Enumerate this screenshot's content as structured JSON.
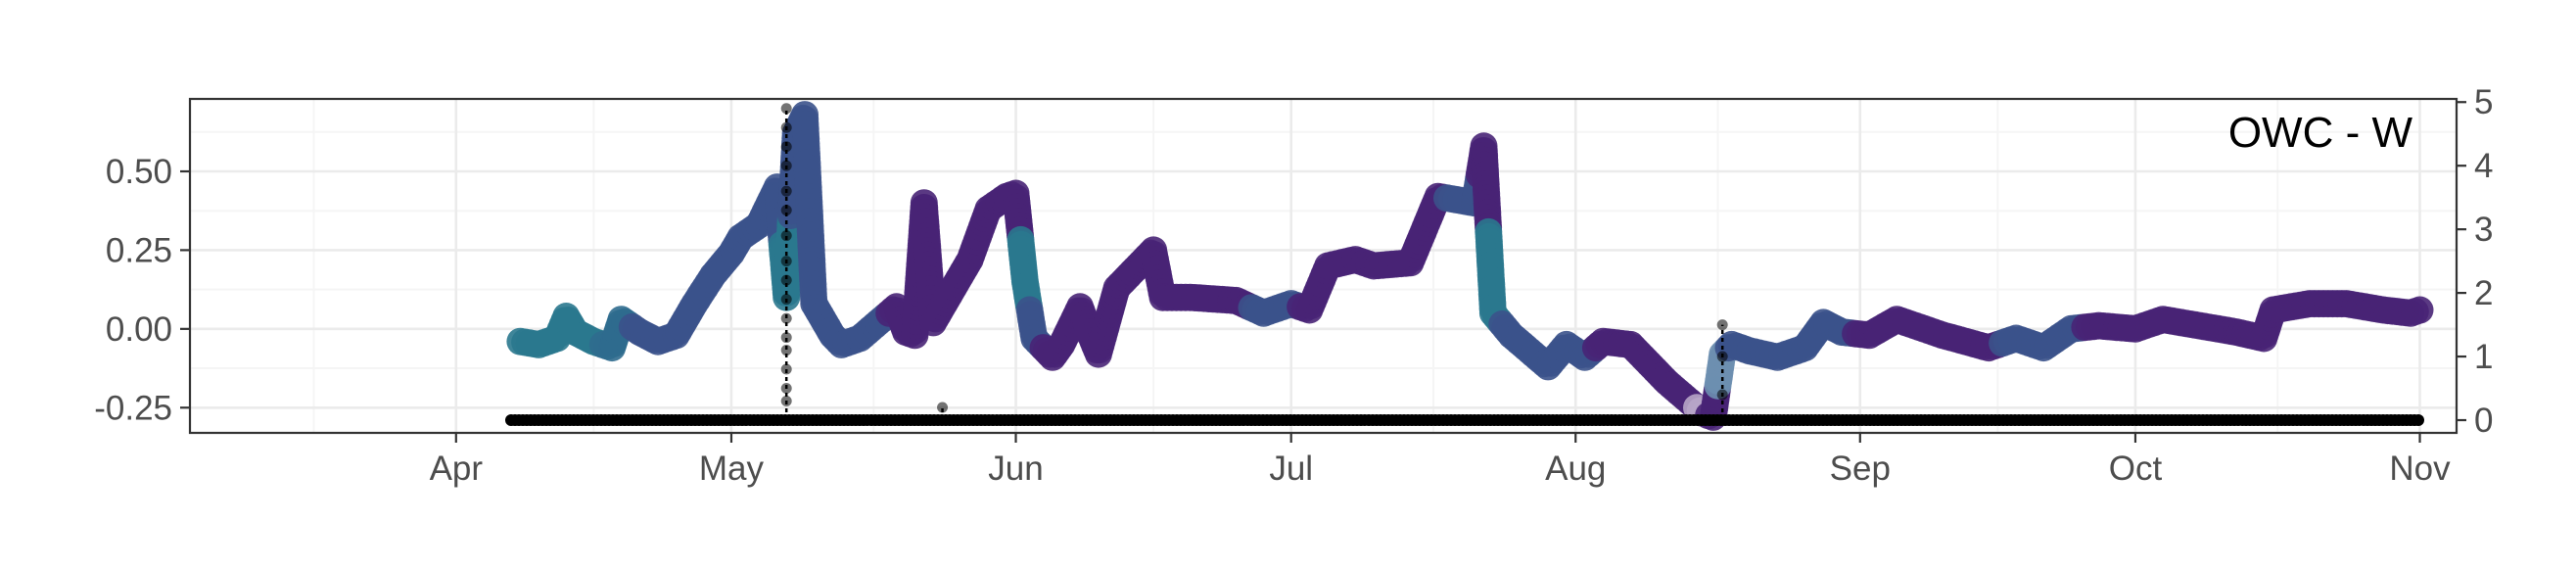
{
  "chart_data": {
    "type": "scatter",
    "title": "",
    "annotation": "OWC - W",
    "xlabel": "",
    "ylabel": "",
    "y2label": "",
    "x_ticks": [
      "Apr",
      "May",
      "Jun",
      "Jul",
      "Aug",
      "Sep",
      "Oct",
      "Nov"
    ],
    "x_tick_dates": [
      "2023-04-01",
      "2023-05-01",
      "2023-06-01",
      "2023-07-01",
      "2023-08-01",
      "2023-09-01",
      "2023-10-01",
      "2023-11-01"
    ],
    "xlim": [
      "2023-03-03",
      "2023-11-05"
    ],
    "ylim": [
      -0.33,
      0.73
    ],
    "y_ticks": [
      -0.25,
      0.0,
      0.25,
      0.5
    ],
    "y_tick_labels": [
      "-0.25",
      "0.00",
      "0.25",
      "0.50"
    ],
    "y2lim": [
      -0.2,
      5.05
    ],
    "y2_ticks": [
      0,
      1,
      2,
      3,
      4,
      5
    ],
    "y2_tick_labels": [
      "0",
      "1",
      "2",
      "3",
      "4",
      "5"
    ],
    "grid": true,
    "legend": "none",
    "colors": {
      "teal": "#2a788e",
      "blue": "#3b528b",
      "purple": "#482475",
      "dark_purple": "#440154",
      "mauve": "#b7a5c8",
      "precip": "#000000",
      "panel_border": "#333333",
      "grid_major": "#ebebeb",
      "grid_minor": "#f5f5f5"
    },
    "series": [
      {
        "kind": "water_level",
        "points": [
          [
            "2023-04-08",
            -0.04,
            "#2a788e"
          ],
          [
            "2023-04-10",
            -0.05,
            "#2a788e"
          ],
          [
            "2023-04-12",
            -0.03,
            "#2a788e"
          ],
          [
            "2023-04-13",
            0.04,
            "#2a788e"
          ],
          [
            "2023-04-14",
            -0.01,
            "#2a788e"
          ],
          [
            "2023-04-16",
            -0.04,
            "#2a788e"
          ],
          [
            "2023-04-18",
            -0.06,
            "#2f6b8e"
          ],
          [
            "2023-04-19",
            0.03,
            "#2f6b8e"
          ],
          [
            "2023-04-21",
            -0.01,
            "#3b528b"
          ],
          [
            "2023-04-23",
            -0.04,
            "#3b528b"
          ],
          [
            "2023-04-25",
            -0.02,
            "#3b528b"
          ],
          [
            "2023-04-27",
            0.08,
            "#3b528b"
          ],
          [
            "2023-04-29",
            0.17,
            "#3b528b"
          ],
          [
            "2023-05-01",
            0.24,
            "#3b528b"
          ],
          [
            "2023-05-02",
            0.29,
            "#3b528b"
          ],
          [
            "2023-05-04",
            0.33,
            "#3b528b"
          ],
          [
            "2023-05-06",
            0.45,
            "#3b528b"
          ],
          [
            "2023-05-07",
            0.1,
            "#2a788e"
          ],
          [
            "2023-05-08",
            0.62,
            "#3b528b"
          ],
          [
            "2023-05-09",
            0.68,
            "#3b528b"
          ],
          [
            "2023-05-10",
            0.08,
            "#3b528b"
          ],
          [
            "2023-05-12",
            -0.02,
            "#3b528b"
          ],
          [
            "2023-05-13",
            -0.05,
            "#3b528b"
          ],
          [
            "2023-05-15",
            -0.03,
            "#3b528b"
          ],
          [
            "2023-05-17",
            0.02,
            "#3b528b"
          ],
          [
            "2023-05-19",
            0.07,
            "#482475"
          ],
          [
            "2023-05-20",
            -0.01,
            "#482475"
          ],
          [
            "2023-05-21",
            -0.02,
            "#482475"
          ],
          [
            "2023-05-22",
            0.4,
            "#482475"
          ],
          [
            "2023-05-23",
            0.02,
            "#482475"
          ],
          [
            "2023-05-25",
            0.12,
            "#482475"
          ],
          [
            "2023-05-27",
            0.22,
            "#482475"
          ],
          [
            "2023-05-29",
            0.38,
            "#482475"
          ],
          [
            "2023-05-31",
            0.42,
            "#482475"
          ],
          [
            "2023-06-01",
            0.43,
            "#482475"
          ],
          [
            "2023-06-02",
            0.15,
            "#2a788e"
          ],
          [
            "2023-06-03",
            -0.03,
            "#3b528b"
          ],
          [
            "2023-06-05",
            -0.09,
            "#482475"
          ],
          [
            "2023-06-06",
            -0.05,
            "#482475"
          ],
          [
            "2023-06-08",
            0.07,
            "#482475"
          ],
          [
            "2023-06-09",
            -0.01,
            "#482475"
          ],
          [
            "2023-06-10",
            -0.08,
            "#482475"
          ],
          [
            "2023-06-12",
            0.13,
            "#482475"
          ],
          [
            "2023-06-14",
            0.19,
            "#482475"
          ],
          [
            "2023-06-16",
            0.25,
            "#482475"
          ],
          [
            "2023-06-17",
            0.1,
            "#482475"
          ],
          [
            "2023-06-20",
            0.1,
            "#482475"
          ],
          [
            "2023-06-25",
            0.09,
            "#482475"
          ],
          [
            "2023-06-28",
            0.05,
            "#3b528b"
          ],
          [
            "2023-07-01",
            0.08,
            "#3b528b"
          ],
          [
            "2023-07-03",
            0.06,
            "#482475"
          ],
          [
            "2023-07-05",
            0.2,
            "#482475"
          ],
          [
            "2023-07-08",
            0.22,
            "#482475"
          ],
          [
            "2023-07-10",
            0.2,
            "#482475"
          ],
          [
            "2023-07-14",
            0.21,
            "#482475"
          ],
          [
            "2023-07-17",
            0.42,
            "#482475"
          ],
          [
            "2023-07-19",
            0.41,
            "#3b528b"
          ],
          [
            "2023-07-21",
            0.4,
            "#3b528b"
          ],
          [
            "2023-07-22",
            0.58,
            "#482475"
          ],
          [
            "2023-07-23",
            0.05,
            "#2a788e"
          ],
          [
            "2023-07-25",
            -0.02,
            "#3b528b"
          ],
          [
            "2023-07-27",
            -0.07,
            "#3b528b"
          ],
          [
            "2023-07-29",
            -0.12,
            "#3b528b"
          ],
          [
            "2023-07-31",
            -0.05,
            "#3b528b"
          ],
          [
            "2023-08-02",
            -0.09,
            "#3b528b"
          ],
          [
            "2023-08-04",
            -0.04,
            "#482475"
          ],
          [
            "2023-08-07",
            -0.05,
            "#482475"
          ],
          [
            "2023-08-09",
            -0.11,
            "#482475"
          ],
          [
            "2023-08-11",
            -0.17,
            "#482475"
          ],
          [
            "2023-08-13",
            -0.22,
            "#482475"
          ],
          [
            "2023-08-15",
            -0.27,
            "#b7a5c8"
          ],
          [
            "2023-08-16",
            -0.28,
            "#482475"
          ],
          [
            "2023-08-17",
            -0.08,
            "#6d8fb0"
          ],
          [
            "2023-08-18",
            -0.05,
            "#3b528b"
          ],
          [
            "2023-08-20",
            -0.07,
            "#3b528b"
          ],
          [
            "2023-08-23",
            -0.09,
            "#3b528b"
          ],
          [
            "2023-08-26",
            -0.06,
            "#3b528b"
          ],
          [
            "2023-08-28",
            0.02,
            "#3b528b"
          ],
          [
            "2023-08-30",
            -0.01,
            "#3b528b"
          ],
          [
            "2023-09-02",
            -0.02,
            "#482475"
          ],
          [
            "2023-09-05",
            0.03,
            "#482475"
          ],
          [
            "2023-09-10",
            -0.02,
            "#482475"
          ],
          [
            "2023-09-15",
            -0.06,
            "#482475"
          ],
          [
            "2023-09-18",
            -0.03,
            "#3b528b"
          ],
          [
            "2023-09-21",
            -0.06,
            "#3b528b"
          ],
          [
            "2023-09-24",
            0.0,
            "#3b528b"
          ],
          [
            "2023-09-27",
            0.01,
            "#482475"
          ],
          [
            "2023-10-01",
            0.0,
            "#482475"
          ],
          [
            "2023-10-04",
            0.03,
            "#482475"
          ],
          [
            "2023-10-08",
            0.01,
            "#482475"
          ],
          [
            "2023-10-12",
            -0.01,
            "#482475"
          ],
          [
            "2023-10-15",
            -0.03,
            "#482475"
          ],
          [
            "2023-10-16",
            0.06,
            "#482475"
          ],
          [
            "2023-10-20",
            0.08,
            "#482475"
          ],
          [
            "2023-10-24",
            0.08,
            "#482475"
          ],
          [
            "2023-10-28",
            0.06,
            "#482475"
          ],
          [
            "2023-10-31",
            0.05,
            "#482475"
          ],
          [
            "2023-11-01",
            0.06,
            "#482475"
          ]
        ]
      },
      {
        "kind": "precipitation",
        "axis": "right",
        "baseline_range": [
          "2023-04-07",
          "2023-11-01"
        ],
        "baseline_value": 0,
        "events": [
          {
            "date": "2023-05-07",
            "values": [
              0.3,
              0.5,
              0.8,
              1.1,
              1.3,
              1.6,
              1.9,
              2.2,
              2.5,
              2.9,
              3.3,
              3.6,
              4.0,
              4.3,
              4.6,
              4.9
            ]
          },
          {
            "date": "2023-05-24",
            "values": [
              0.2
            ]
          },
          {
            "date": "2023-08-17",
            "values": [
              0.4,
              1.0,
              1.5
            ]
          }
        ]
      }
    ]
  }
}
